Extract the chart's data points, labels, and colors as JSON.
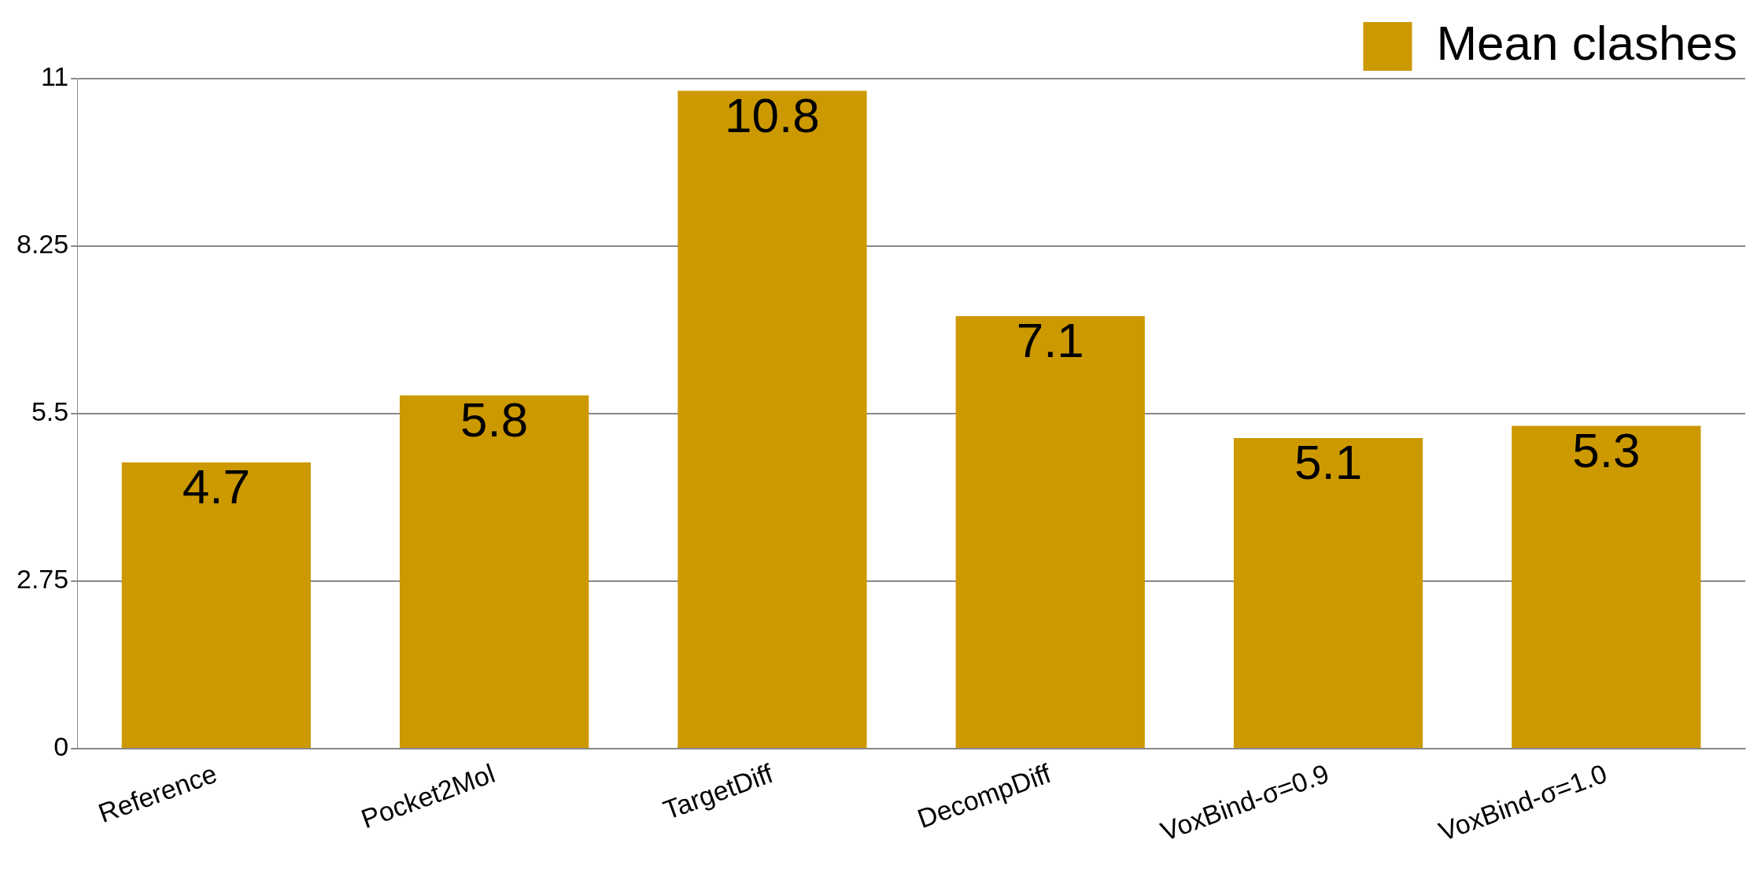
{
  "chart_data": {
    "type": "bar",
    "categories": [
      "Reference",
      "Pocket2Mol",
      "TargetDiff",
      "DecompDiff",
      "VoxBind-σ=0.9",
      "VoxBind-σ=1.0"
    ],
    "series": [
      {
        "name": "Mean clashes",
        "color": "#cc9900",
        "values": [
          4.7,
          5.8,
          10.8,
          7.1,
          5.1,
          5.3
        ]
      }
    ],
    "ylim": [
      0,
      11
    ],
    "yticks": [
      0,
      2.75,
      5.5,
      8.25,
      11
    ],
    "grid": "y",
    "legend": "top right",
    "data_labels": true
  }
}
